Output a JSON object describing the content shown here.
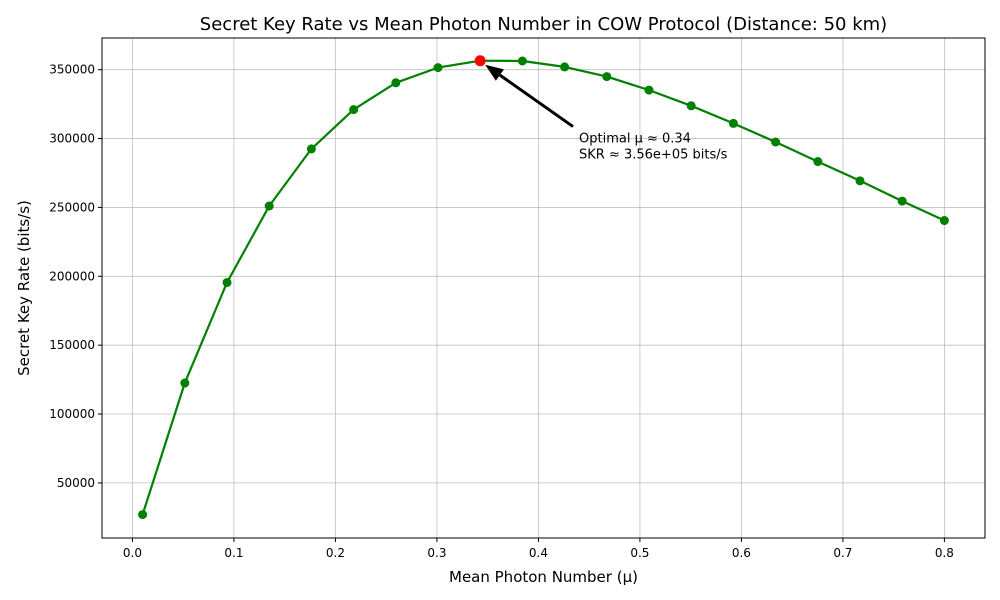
{
  "chart_data": {
    "type": "line",
    "title": "Secret Key Rate vs Mean Photon Number in COW Protocol (Distance: 50 km)",
    "xlabel": "Mean Photon Number (μ)",
    "ylabel": "Secret Key Rate (bits/s)",
    "xlim": [
      -0.03,
      0.84
    ],
    "ylim": [
      10000,
      373000
    ],
    "x_ticks": [
      0.0,
      0.1,
      0.2,
      0.3,
      0.4,
      0.5,
      0.6,
      0.7,
      0.8
    ],
    "x_tick_labels": [
      "0.0",
      "0.1",
      "0.2",
      "0.3",
      "0.4",
      "0.5",
      "0.6",
      "0.7",
      "0.8"
    ],
    "y_ticks": [
      50000,
      100000,
      150000,
      200000,
      250000,
      300000,
      350000
    ],
    "y_tick_labels": [
      "50000",
      "100000",
      "150000",
      "200000",
      "250000",
      "300000",
      "350000"
    ],
    "grid": true,
    "series": [
      {
        "color": "#008000",
        "marker": "circle",
        "x": [
          0.01,
          0.0516,
          0.0932,
          0.1347,
          0.1763,
          0.2179,
          0.2595,
          0.3011,
          0.3426,
          0.3842,
          0.4258,
          0.4674,
          0.5089,
          0.5505,
          0.5921,
          0.6337,
          0.6753,
          0.7168,
          0.7584,
          0.8
        ],
        "y": [
          27000,
          122500,
          195500,
          251000,
          292500,
          321000,
          340500,
          351500,
          356500,
          356300,
          352000,
          345000,
          335200,
          323800,
          311000,
          297500,
          283300,
          269300,
          254600,
          240500
        ]
      }
    ],
    "highlight": {
      "x": 0.3426,
      "y": 356500,
      "color": "#ff0000"
    },
    "annotation": {
      "lines": [
        "Optimal μ ≈ 0.34",
        "SKR ≈ 3.56e+05 bits/s"
      ],
      "text_x": 0.44,
      "text_y": 300000,
      "arrow_to_x": 0.3426,
      "arrow_to_y": 356500
    }
  }
}
